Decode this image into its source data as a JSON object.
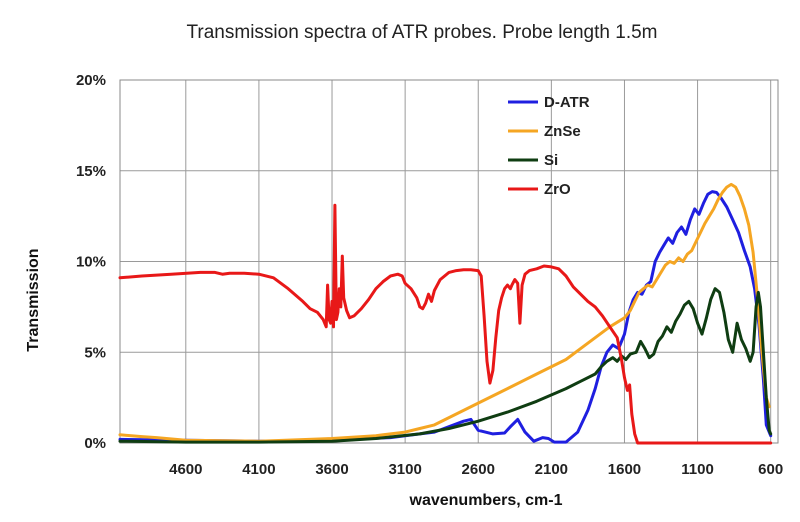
{
  "chart_data": {
    "type": "line",
    "title": "Transmission spectra of ATR probes.   Probe length 1.5m",
    "xlabel": "wavenumbers,  cm-1",
    "ylabel": "Transmission",
    "xlim": [
      5050,
      550
    ],
    "ylim": [
      0,
      20
    ],
    "x_reversed": true,
    "x_ticks": [
      4600,
      4100,
      3600,
      3100,
      2600,
      2100,
      1600,
      1100,
      600
    ],
    "y_ticks": [
      0,
      5,
      10,
      15,
      20
    ],
    "y_tick_labels": [
      "0%",
      "5%",
      "10%",
      "15%",
      "20%"
    ],
    "grid": true,
    "legend_position": "top-right",
    "series": [
      {
        "name": "D-ATR",
        "color": "#1f1fe0",
        "points": [
          [
            5050,
            0.2
          ],
          [
            4600,
            0.15
          ],
          [
            4100,
            0.1
          ],
          [
            3600,
            0.15
          ],
          [
            3200,
            0.3
          ],
          [
            3000,
            0.5
          ],
          [
            2900,
            0.6
          ],
          [
            2800,
            0.9
          ],
          [
            2700,
            1.2
          ],
          [
            2650,
            1.3
          ],
          [
            2600,
            0.7
          ],
          [
            2500,
            0.5
          ],
          [
            2420,
            0.55
          ],
          [
            2380,
            0.9
          ],
          [
            2330,
            1.3
          ],
          [
            2280,
            0.6
          ],
          [
            2220,
            0.1
          ],
          [
            2160,
            0.3
          ],
          [
            2120,
            0.25
          ],
          [
            2080,
            0.05
          ],
          [
            2000,
            0.05
          ],
          [
            1920,
            0.6
          ],
          [
            1850,
            1.8
          ],
          [
            1800,
            3.0
          ],
          [
            1760,
            4.2
          ],
          [
            1720,
            5.0
          ],
          [
            1680,
            5.4
          ],
          [
            1640,
            5.2
          ],
          [
            1600,
            6.0
          ],
          [
            1570,
            7.2
          ],
          [
            1540,
            7.9
          ],
          [
            1510,
            8.3
          ],
          [
            1480,
            8.2
          ],
          [
            1450,
            8.7
          ],
          [
            1420,
            8.9
          ],
          [
            1390,
            10.0
          ],
          [
            1360,
            10.5
          ],
          [
            1330,
            10.9
          ],
          [
            1300,
            11.3
          ],
          [
            1270,
            11.0
          ],
          [
            1240,
            11.6
          ],
          [
            1210,
            11.9
          ],
          [
            1180,
            11.5
          ],
          [
            1150,
            12.3
          ],
          [
            1120,
            12.9
          ],
          [
            1090,
            12.6
          ],
          [
            1060,
            13.2
          ],
          [
            1030,
            13.7
          ],
          [
            1000,
            13.85
          ],
          [
            970,
            13.8
          ],
          [
            940,
            13.5
          ],
          [
            900,
            13.0
          ],
          [
            860,
            12.3
          ],
          [
            820,
            11.6
          ],
          [
            780,
            10.6
          ],
          [
            740,
            9.7
          ],
          [
            710,
            8.5
          ],
          [
            680,
            6.5
          ],
          [
            650,
            3.5
          ],
          [
            630,
            1.0
          ],
          [
            600,
            0.4
          ]
        ]
      },
      {
        "name": "ZnSe",
        "color": "#f5a623",
        "points": [
          [
            5050,
            0.45
          ],
          [
            4900,
            0.35
          ],
          [
            4800,
            0.3
          ],
          [
            4600,
            0.15
          ],
          [
            4100,
            0.1
          ],
          [
            3600,
            0.25
          ],
          [
            3300,
            0.4
          ],
          [
            3100,
            0.6
          ],
          [
            3000,
            0.8
          ],
          [
            2900,
            1.0
          ],
          [
            2800,
            1.4
          ],
          [
            2600,
            2.2
          ],
          [
            2400,
            3.0
          ],
          [
            2200,
            3.8
          ],
          [
            2000,
            4.6
          ],
          [
            1900,
            5.2
          ],
          [
            1800,
            5.8
          ],
          [
            1700,
            6.4
          ],
          [
            1600,
            6.9
          ],
          [
            1560,
            7.3
          ],
          [
            1530,
            7.8
          ],
          [
            1500,
            8.3
          ],
          [
            1470,
            8.5
          ],
          [
            1440,
            8.7
          ],
          [
            1410,
            8.6
          ],
          [
            1380,
            9.0
          ],
          [
            1350,
            9.4
          ],
          [
            1320,
            9.8
          ],
          [
            1290,
            10.0
          ],
          [
            1260,
            9.9
          ],
          [
            1230,
            10.2
          ],
          [
            1200,
            10.0
          ],
          [
            1170,
            10.4
          ],
          [
            1140,
            10.6
          ],
          [
            1110,
            11.1
          ],
          [
            1080,
            11.6
          ],
          [
            1050,
            12.1
          ],
          [
            1020,
            12.5
          ],
          [
            990,
            12.9
          ],
          [
            960,
            13.4
          ],
          [
            930,
            13.8
          ],
          [
            900,
            14.1
          ],
          [
            870,
            14.25
          ],
          [
            840,
            14.1
          ],
          [
            810,
            13.6
          ],
          [
            780,
            12.9
          ],
          [
            750,
            12.0
          ],
          [
            720,
            10.5
          ],
          [
            690,
            8.0
          ],
          [
            660,
            5.0
          ],
          [
            630,
            2.5
          ],
          [
            610,
            2.0
          ]
        ]
      },
      {
        "name": "Si",
        "color": "#0f3d12",
        "points": [
          [
            5050,
            0.1
          ],
          [
            4600,
            0.05
          ],
          [
            4100,
            0.05
          ],
          [
            3600,
            0.1
          ],
          [
            3300,
            0.25
          ],
          [
            3000,
            0.5
          ],
          [
            2800,
            0.8
          ],
          [
            2600,
            1.2
          ],
          [
            2400,
            1.7
          ],
          [
            2200,
            2.3
          ],
          [
            2000,
            3.0
          ],
          [
            1900,
            3.4
          ],
          [
            1800,
            3.8
          ],
          [
            1760,
            4.2
          ],
          [
            1720,
            4.5
          ],
          [
            1680,
            4.7
          ],
          [
            1650,
            4.5
          ],
          [
            1620,
            4.8
          ],
          [
            1590,
            4.6
          ],
          [
            1560,
            4.9
          ],
          [
            1520,
            5.0
          ],
          [
            1490,
            5.6
          ],
          [
            1460,
            5.2
          ],
          [
            1430,
            4.7
          ],
          [
            1400,
            4.9
          ],
          [
            1370,
            5.6
          ],
          [
            1340,
            5.9
          ],
          [
            1310,
            6.4
          ],
          [
            1280,
            6.1
          ],
          [
            1250,
            6.7
          ],
          [
            1220,
            7.1
          ],
          [
            1190,
            7.6
          ],
          [
            1160,
            7.8
          ],
          [
            1130,
            7.4
          ],
          [
            1100,
            6.6
          ],
          [
            1070,
            6.0
          ],
          [
            1040,
            6.9
          ],
          [
            1010,
            7.9
          ],
          [
            980,
            8.5
          ],
          [
            950,
            8.3
          ],
          [
            920,
            7.2
          ],
          [
            890,
            5.7
          ],
          [
            860,
            5.0
          ],
          [
            830,
            6.6
          ],
          [
            800,
            5.7
          ],
          [
            770,
            5.2
          ],
          [
            740,
            4.5
          ],
          [
            720,
            5.0
          ],
          [
            700,
            7.5
          ],
          [
            685,
            8.3
          ],
          [
            670,
            7.5
          ],
          [
            650,
            5.0
          ],
          [
            630,
            2.5
          ],
          [
            610,
            0.7
          ],
          [
            600,
            0.5
          ]
        ]
      },
      {
        "name": "ZrO",
        "color": "#e81818",
        "points": [
          [
            5050,
            9.1
          ],
          [
            4900,
            9.2
          ],
          [
            4700,
            9.3
          ],
          [
            4500,
            9.4
          ],
          [
            4400,
            9.4
          ],
          [
            4350,
            9.3
          ],
          [
            4300,
            9.35
          ],
          [
            4200,
            9.35
          ],
          [
            4100,
            9.3
          ],
          [
            4000,
            9.1
          ],
          [
            3900,
            8.5
          ],
          [
            3800,
            7.8
          ],
          [
            3750,
            7.4
          ],
          [
            3700,
            7.2
          ],
          [
            3660,
            6.8
          ],
          [
            3640,
            6.4
          ],
          [
            3630,
            8.7
          ],
          [
            3620,
            6.8
          ],
          [
            3610,
            6.6
          ],
          [
            3600,
            7.8
          ],
          [
            3590,
            6.4
          ],
          [
            3580,
            13.1
          ],
          [
            3570,
            6.8
          ],
          [
            3560,
            7.2
          ],
          [
            3550,
            8.5
          ],
          [
            3540,
            7.5
          ],
          [
            3530,
            10.3
          ],
          [
            3520,
            8.0
          ],
          [
            3500,
            7.3
          ],
          [
            3480,
            6.9
          ],
          [
            3450,
            7.0
          ],
          [
            3400,
            7.4
          ],
          [
            3350,
            7.9
          ],
          [
            3300,
            8.5
          ],
          [
            3250,
            8.9
          ],
          [
            3200,
            9.2
          ],
          [
            3150,
            9.3
          ],
          [
            3120,
            9.2
          ],
          [
            3100,
            8.8
          ],
          [
            3060,
            8.5
          ],
          [
            3020,
            8.0
          ],
          [
            3000,
            7.5
          ],
          [
            2980,
            7.4
          ],
          [
            2960,
            7.7
          ],
          [
            2940,
            8.2
          ],
          [
            2920,
            7.8
          ],
          [
            2900,
            8.4
          ],
          [
            2860,
            9.0
          ],
          [
            2800,
            9.4
          ],
          [
            2750,
            9.5
          ],
          [
            2700,
            9.55
          ],
          [
            2650,
            9.55
          ],
          [
            2600,
            9.5
          ],
          [
            2580,
            9.2
          ],
          [
            2560,
            7.0
          ],
          [
            2540,
            4.5
          ],
          [
            2520,
            3.3
          ],
          [
            2500,
            4.0
          ],
          [
            2480,
            5.8
          ],
          [
            2460,
            7.3
          ],
          [
            2440,
            8.0
          ],
          [
            2420,
            8.5
          ],
          [
            2400,
            8.7
          ],
          [
            2380,
            8.5
          ],
          [
            2370,
            8.7
          ],
          [
            2350,
            9.0
          ],
          [
            2330,
            8.8
          ],
          [
            2315,
            6.6
          ],
          [
            2300,
            8.7
          ],
          [
            2280,
            9.3
          ],
          [
            2250,
            9.5
          ],
          [
            2200,
            9.6
          ],
          [
            2150,
            9.75
          ],
          [
            2100,
            9.7
          ],
          [
            2050,
            9.6
          ],
          [
            2000,
            9.2
          ],
          [
            1950,
            8.6
          ],
          [
            1900,
            8.2
          ],
          [
            1850,
            7.8
          ],
          [
            1800,
            7.5
          ],
          [
            1750,
            7.0
          ],
          [
            1700,
            6.4
          ],
          [
            1650,
            5.8
          ],
          [
            1620,
            4.6
          ],
          [
            1600,
            3.6
          ],
          [
            1580,
            2.9
          ],
          [
            1565,
            3.2
          ],
          [
            1550,
            1.6
          ],
          [
            1530,
            0.5
          ],
          [
            1510,
            0.0
          ],
          [
            1400,
            0.0
          ],
          [
            1000,
            0.0
          ],
          [
            800,
            0.0
          ],
          [
            600,
            0.0
          ]
        ]
      }
    ]
  }
}
